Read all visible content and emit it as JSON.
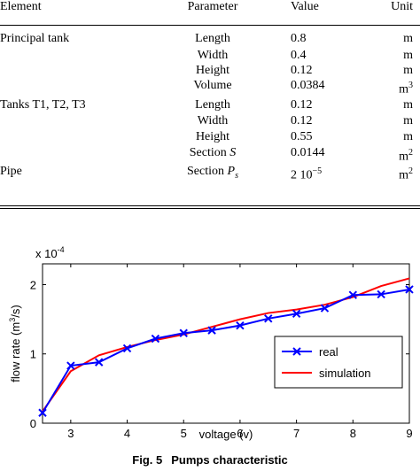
{
  "table": {
    "headers": {
      "element": "Element",
      "parameter": "Parameter",
      "value": "Value",
      "unit": "Unit"
    },
    "rows": [
      {
        "element": "Principal tank",
        "parameter": "Length",
        "value": "0.8",
        "unit": "m"
      },
      {
        "element": "",
        "parameter": "Width",
        "value": "0.4",
        "unit": "m"
      },
      {
        "element": "",
        "parameter": "Height",
        "value": "0.12",
        "unit": "m"
      },
      {
        "element": "",
        "parameter": "Volume",
        "value": "0.0384",
        "unit": "m",
        "unit_sup": "3"
      },
      {
        "element": "Tanks T1, T2, T3",
        "parameter": "Length",
        "value": "0.12",
        "unit": "m"
      },
      {
        "element": "",
        "parameter": "Width",
        "value": "0.12",
        "unit": "m"
      },
      {
        "element": "",
        "parameter": "Height",
        "value": "0.55",
        "unit": "m"
      },
      {
        "element": "",
        "parameter": "Section ",
        "parameter_italic": "S",
        "value": "0.0144",
        "unit": "m",
        "unit_sup": "2"
      },
      {
        "element": "Pipe",
        "parameter": "Section ",
        "parameter_italic": "P",
        "parameter_sub": "s",
        "value": "2 10",
        "value_sup": "−5",
        "unit": "m",
        "unit_sup": "2"
      }
    ]
  },
  "chart_data": {
    "type": "line",
    "title": "",
    "xlabel": "voltage (v)",
    "ylabel": "flow rate (m³/s)",
    "ylabel_parts": {
      "pre": "flow rate (m",
      "sup": "3",
      "post": "/s)"
    },
    "y_exponent_label": "x 10",
    "y_exponent_sup": "-4",
    "xlim": [
      2.5,
      9
    ],
    "ylim": [
      0,
      2.3
    ],
    "xticks": [
      3,
      4,
      5,
      6,
      7,
      8,
      9
    ],
    "yticks": [
      0,
      1,
      2
    ],
    "grid": false,
    "legend_position": "bottom-right",
    "series": [
      {
        "name": "real",
        "color": "#0000ff",
        "marker": "x",
        "x": [
          2.5,
          3,
          3.5,
          4,
          4.5,
          5,
          5.5,
          6,
          6.5,
          7,
          7.5,
          8,
          8.5,
          9
        ],
        "values": [
          0.15,
          0.83,
          0.88,
          1.08,
          1.22,
          1.3,
          1.34,
          1.41,
          1.51,
          1.58,
          1.66,
          1.85,
          1.86,
          1.93
        ]
      },
      {
        "name": "simulation",
        "color": "#ff0000",
        "marker": "none",
        "x": [
          2.5,
          3,
          3.5,
          4,
          4.5,
          5,
          5.5,
          6,
          6.5,
          7,
          7.5,
          8,
          8.5,
          9
        ],
        "values": [
          0.17,
          0.75,
          0.98,
          1.1,
          1.2,
          1.28,
          1.39,
          1.5,
          1.59,
          1.64,
          1.71,
          1.82,
          1.98,
          2.09
        ]
      }
    ]
  },
  "caption": {
    "label": "Fig. 5",
    "text": "Pumps characteristic"
  }
}
